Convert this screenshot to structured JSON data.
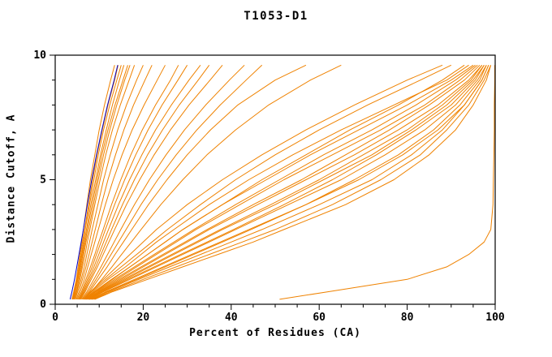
{
  "chart_data": {
    "type": "line",
    "title": "T1053-D1",
    "xlabel": "Percent of Residues (CA)",
    "ylabel": "Distance Cutoff, A",
    "xlim": [
      0,
      100
    ],
    "ylim": [
      0,
      10
    ],
    "x_ticks": [
      0,
      20,
      40,
      60,
      80,
      100
    ],
    "x_minor_step": 5,
    "y_ticks": [
      0,
      5,
      10
    ],
    "y_minor_step": 1,
    "grid": false,
    "legend": "none",
    "colors": {
      "orange": "#ef8200",
      "blue": "#0000cc",
      "axis": "#000000",
      "background": "#ffffff"
    },
    "y_levels": [
      0.2,
      0.5,
      1,
      1.5,
      2,
      2.5,
      3,
      4,
      5,
      6,
      7,
      8,
      9,
      9.6
    ],
    "series": [
      {
        "id": "curve-01",
        "color": "orange",
        "x": [
          3.8,
          4.2,
          4.8,
          5.2,
          5.6,
          6.0,
          6.4,
          7.2,
          8.0,
          9.0,
          10.0,
          11.2,
          12.6,
          13.5
        ]
      },
      {
        "id": "curve-02",
        "color": "orange",
        "x": [
          4.0,
          4.4,
          5.0,
          5.5,
          6.0,
          6.4,
          6.8,
          7.8,
          8.8,
          9.8,
          11.0,
          12.4,
          14.0,
          15.0
        ]
      },
      {
        "id": "curve-03",
        "color": "orange",
        "x": [
          4.2,
          4.6,
          5.2,
          5.8,
          6.3,
          6.8,
          7.3,
          8.4,
          9.5,
          10.6,
          12.0,
          13.6,
          15.4,
          16.5
        ]
      },
      {
        "id": "curve-04",
        "color": "orange",
        "x": [
          4.4,
          4.9,
          5.6,
          6.2,
          6.8,
          7.3,
          7.9,
          9.0,
          10.2,
          11.5,
          13.0,
          14.8,
          16.8,
          18.0
        ]
      },
      {
        "id": "curve-05",
        "color": "orange",
        "x": [
          4.1,
          4.5,
          5.1,
          5.6,
          6.1,
          6.6,
          7.1,
          8.1,
          9.2,
          10.3,
          11.6,
          13.0,
          14.6,
          15.6
        ]
      },
      {
        "id": "curve-06",
        "color": "orange",
        "x": [
          4.6,
          5.1,
          5.9,
          6.6,
          7.2,
          7.8,
          8.4,
          9.7,
          11.0,
          12.5,
          14.2,
          16.2,
          18.5,
          20.0
        ]
      },
      {
        "id": "curve-07",
        "color": "orange",
        "x": [
          4.3,
          4.8,
          5.4,
          6.0,
          6.5,
          7.0,
          7.6,
          8.7,
          9.8,
          11.0,
          12.4,
          14.0,
          15.8,
          17.0
        ]
      },
      {
        "id": "curve-08",
        "color": "orange",
        "x": [
          4.8,
          5.4,
          6.2,
          7.0,
          7.7,
          8.4,
          9.1,
          10.5,
          12.0,
          13.7,
          15.6,
          17.8,
          20.4,
          22.0
        ]
      },
      {
        "id": "curve-09",
        "color": "orange",
        "x": [
          3.9,
          4.3,
          4.9,
          5.4,
          5.8,
          6.2,
          6.7,
          7.6,
          8.5,
          9.5,
          10.7,
          12.0,
          13.5,
          14.3
        ]
      },
      {
        "id": "curve-10",
        "color": "orange",
        "x": [
          5.0,
          5.7,
          6.6,
          7.4,
          8.2,
          9.0,
          9.8,
          11.4,
          13.2,
          15.2,
          17.5,
          20.2,
          23.2,
          25.0
        ]
      },
      {
        "id": "curve-11",
        "color": "orange",
        "x": [
          5.2,
          6.0,
          7.0,
          8.0,
          9.0,
          9.9,
          10.9,
          12.8,
          14.9,
          17.2,
          19.8,
          22.8,
          26.2,
          28.0
        ]
      },
      {
        "id": "curve-12",
        "color": "orange",
        "x": [
          5.5,
          6.4,
          7.6,
          8.8,
          9.9,
          11.0,
          12.1,
          14.4,
          16.9,
          19.7,
          22.8,
          26.4,
          30.4,
          33.0
        ]
      },
      {
        "id": "curve-13",
        "color": "orange",
        "x": [
          5.8,
          6.8,
          8.2,
          9.6,
          10.9,
          12.2,
          13.5,
          16.2,
          19.2,
          22.5,
          26.2,
          30.4,
          35.2,
          38.0
        ]
      },
      {
        "id": "curve-14",
        "color": "orange",
        "x": [
          6.0,
          7.2,
          8.8,
          10.4,
          11.9,
          13.4,
          14.9,
          18.0,
          21.4,
          25.2,
          29.4,
          34.2,
          39.6,
          43.0
        ]
      },
      {
        "id": "curve-15",
        "color": "orange",
        "x": [
          5.4,
          6.2,
          7.3,
          8.4,
          9.4,
          10.4,
          11.4,
          13.5,
          15.8,
          18.3,
          21.1,
          24.3,
          27.9,
          30.0
        ]
      },
      {
        "id": "curve-16",
        "color": "orange",
        "x": [
          6.2,
          7.5,
          9.3,
          11.0,
          12.7,
          14.4,
          16.1,
          19.5,
          23.3,
          27.5,
          32.2,
          37.5,
          43.4,
          47.0
        ]
      },
      {
        "id": "curve-17",
        "color": "orange",
        "x": [
          5.6,
          6.6,
          7.9,
          9.2,
          10.4,
          11.6,
          12.8,
          15.3,
          18.0,
          21.0,
          24.4,
          28.2,
          32.5,
          35.0
        ]
      },
      {
        "id": "curve-18",
        "color": "orange",
        "x": [
          6.4,
          7.8,
          9.8,
          11.8,
          13.6,
          15.5,
          17.4,
          21.2,
          25.4,
          30.0,
          35.3,
          41.5,
          50.0,
          57.0
        ]
      },
      {
        "id": "curve-19",
        "color": "orange",
        "x": [
          6.6,
          8.2,
          10.6,
          12.9,
          15.1,
          17.3,
          19.5,
          24.0,
          29.0,
          34.5,
          41.0,
          48.5,
          58.0,
          65.0
        ]
      },
      {
        "id": "curve-20",
        "color": "orange",
        "x": [
          6.5,
          8.0,
          11.0,
          14.0,
          17.0,
          20.0,
          23.0,
          30.0,
          38.0,
          47.0,
          57.0,
          68.0,
          80.0,
          88.0
        ]
      },
      {
        "id": "curve-21",
        "color": "orange",
        "x": [
          6.8,
          8.5,
          12.0,
          16.0,
          19.5,
          23.0,
          27.0,
          35.0,
          44.0,
          54.0,
          65.0,
          77.0,
          89.0,
          94.0
        ]
      },
      {
        "id": "curve-22",
        "color": "orange",
        "x": [
          7.0,
          9.0,
          13.0,
          17.0,
          21.0,
          25.0,
          29.0,
          38.0,
          48.0,
          58.0,
          69.0,
          80.0,
          90.0,
          95.0
        ]
      },
      {
        "id": "curve-23",
        "color": "orange",
        "x": [
          7.2,
          9.5,
          14.0,
          18.5,
          23.0,
          27.5,
          32.0,
          42.0,
          52.0,
          63.0,
          74.0,
          84.0,
          92.0,
          96.0
        ]
      },
      {
        "id": "curve-24",
        "color": "orange",
        "x": [
          7.5,
          10.0,
          15.0,
          20.0,
          25.0,
          30.0,
          35.0,
          46.0,
          57.0,
          68.0,
          78.0,
          87.0,
          94.0,
          97.0
        ]
      },
      {
        "id": "curve-25",
        "color": "orange",
        "x": [
          7.8,
          10.5,
          16.0,
          21.5,
          27.0,
          32.5,
          38.0,
          50.0,
          61.0,
          72.0,
          81.0,
          89.0,
          95.0,
          97.5
        ]
      },
      {
        "id": "curve-26",
        "color": "orange",
        "x": [
          8.0,
          11.0,
          17.0,
          23.0,
          29.0,
          35.0,
          41.0,
          53.0,
          65.0,
          75.0,
          84.0,
          91.0,
          96.0,
          98.0
        ]
      },
      {
        "id": "curve-27",
        "color": "orange",
        "x": [
          8.2,
          11.5,
          18.0,
          24.5,
          31.0,
          37.5,
          44.0,
          57.0,
          68.0,
          78.0,
          86.0,
          92.0,
          96.5,
          98.0
        ]
      },
      {
        "id": "curve-28",
        "color": "orange",
        "x": [
          8.5,
          12.0,
          19.0,
          26.0,
          33.0,
          40.0,
          47.0,
          60.0,
          72.0,
          81.0,
          88.0,
          93.0,
          97.0,
          98.5
        ]
      },
      {
        "id": "curve-29",
        "color": "orange",
        "x": [
          6.6,
          8.2,
          11.5,
          15.0,
          18.5,
          22.0,
          25.5,
          33.0,
          41.0,
          50.0,
          60.0,
          71.0,
          83.0,
          90.0
        ]
      },
      {
        "id": "curve-30",
        "color": "orange",
        "x": [
          7.1,
          9.2,
          13.5,
          18.0,
          22.5,
          27.0,
          31.5,
          41.0,
          51.0,
          61.0,
          72.0,
          82.0,
          91.0,
          95.5
        ]
      },
      {
        "id": "curve-31",
        "color": "orange",
        "x": [
          7.6,
          10.2,
          15.5,
          21.0,
          26.5,
          32.0,
          37.5,
          49.0,
          60.0,
          70.0,
          80.0,
          88.0,
          94.5,
          97.0
        ]
      },
      {
        "id": "curve-32",
        "color": "orange",
        "x": [
          8.8,
          12.5,
          20.0,
          27.5,
          35.0,
          42.5,
          50.0,
          63.0,
          74.0,
          83.0,
          89.0,
          94.0,
          97.5,
          99.0
        ]
      },
      {
        "id": "curve-33",
        "color": "orange",
        "x": [
          9.0,
          13.0,
          21.0,
          29.0,
          37.0,
          45.0,
          52.0,
          66.0,
          77.0,
          85.0,
          91.0,
          95.0,
          98.0,
          99.0
        ]
      },
      {
        "id": "curve-34",
        "color": "orange",
        "x": [
          6.9,
          8.8,
          12.8,
          17.0,
          21.0,
          25.0,
          29.0,
          38.0,
          47.0,
          57.0,
          67.0,
          78.0,
          88.0,
          93.0
        ]
      },
      {
        "id": "curve-35",
        "color": "orange",
        "x": [
          7.3,
          9.8,
          14.5,
          19.5,
          24.5,
          29.5,
          34.5,
          45.0,
          56.0,
          66.0,
          76.0,
          85.0,
          93.0,
          96.5
        ]
      },
      {
        "id": "curve-36",
        "color": "orange",
        "x": [
          8.3,
          11.8,
          18.5,
          25.0,
          31.5,
          38.0,
          44.5,
          57.0,
          69.0,
          79.0,
          87.0,
          93.0,
          97.0,
          98.5
        ]
      },
      {
        "id": "curve-37",
        "color": "orange",
        "x": [
          7.7,
          10.8,
          16.5,
          22.5,
          28.5,
          34.5,
          40.5,
          52.0,
          63.0,
          73.0,
          82.0,
          90.0,
          95.5,
          97.5
        ]
      },
      {
        "id": "curve-outlier",
        "color": "orange",
        "x": [
          51.0,
          62.0,
          80.0,
          89.0,
          94.0,
          97.5,
          99.0,
          99.5,
          99.6,
          99.7,
          99.8,
          99.8,
          99.9,
          99.9
        ]
      },
      {
        "id": "curve-blue",
        "color": "blue",
        "x": [
          3.4,
          3.8,
          4.4,
          4.9,
          5.4,
          5.9,
          6.4,
          7.3,
          8.3,
          9.4,
          10.6,
          11.9,
          13.4,
          14.2
        ]
      }
    ]
  }
}
